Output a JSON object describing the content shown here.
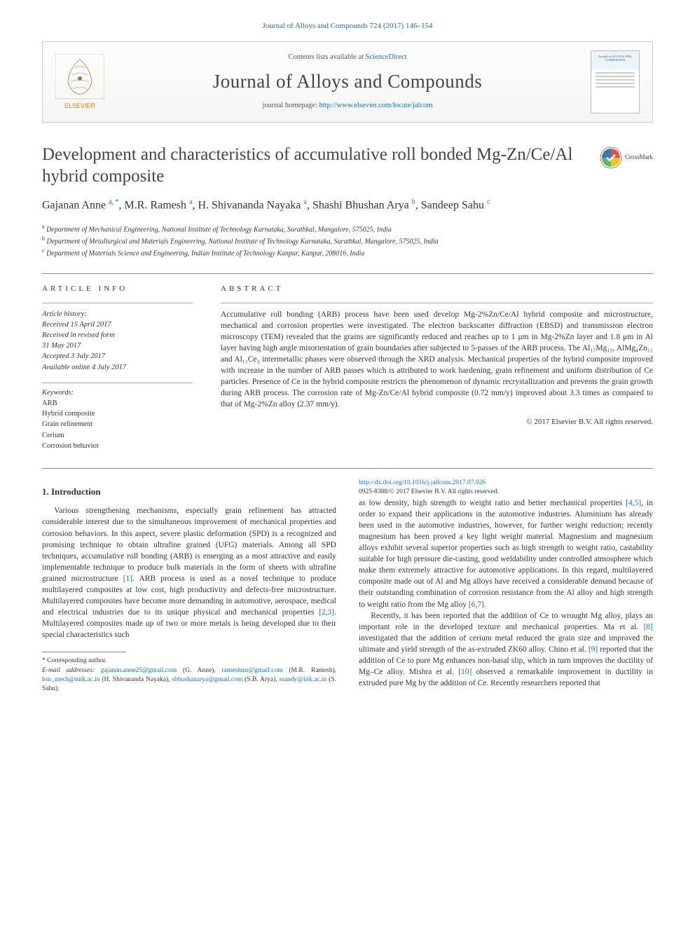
{
  "header": {
    "citation": "Journal of Alloys and Compounds 724 (2017) 146–154",
    "contents": "Contents lists available at ",
    "contents_link": "ScienceDirect",
    "journal_name": "Journal of Alloys and Compounds",
    "homepage_label": "journal homepage: ",
    "homepage_url": "http://www.elsevier.com/locate/jalcom",
    "publisher_name": "ELSEVIER",
    "cover_label": "Journal of ALLOYS AND COMPOUNDS"
  },
  "crossmark": {
    "label": "CrossMark"
  },
  "article": {
    "title": "Development and characteristics of accumulative roll bonded Mg-Zn/Ce/Al hybrid composite",
    "authors_html": "Gajanan Anne <sup class='sup'>a, *</sup>, M.R. Ramesh <sup class='sup'>a</sup>, H. Shivananda Nayaka <sup class='sup'>a</sup>, Shashi Bhushan Arya <sup class='sup'>b</sup>, Sandeep Sahu <sup class='sup'>c</sup>",
    "affiliations": [
      {
        "sup": "a",
        "text": "Department of Mechanical Engineering, National Institute of Technology Karnataka, Surathkal, Mangalore, 575025, India"
      },
      {
        "sup": "b",
        "text": "Department of Metallurgical and Materials Engineering, National Institute of Technology Karnataka, Surathkal, Mangalore, 575025, India"
      },
      {
        "sup": "c",
        "text": "Department of Materials Science and Engineering, Indian Institute of Technology Kanpur, Kanpur, 208016, India"
      }
    ]
  },
  "info": {
    "label": "ARTICLE INFO",
    "history_label": "Article history:",
    "history": [
      "Received 15 April 2017",
      "Received in revised form",
      "31 May 2017",
      "Accepted 3 July 2017",
      "Available online 4 July 2017"
    ],
    "keywords_label": "Keywords:",
    "keywords": [
      "ARB",
      "Hybrid composite",
      "Grain refinement",
      "Cerium",
      "Corrosion behavior"
    ]
  },
  "abstract": {
    "label": "ABSTRACT",
    "text": "Accumulative roll bonding (ARB) process have been used develop Mg-2%Zn/Ce/Al hybrid composite and microstructure, mechanical and corrosion properties were investigated. The electron backscatter diffraction (EBSD) and transmission electron microscopy (TEM) revealed that the grains are significantly reduced and reaches up to 1 μm in Mg-2%Zn layer and 1.8 μm in Al layer having high angle misorientation of grain boundaries after subjected to 5-passes of the ARB process. The Al₁₇Mg₁₂, AlMg₄Zn₁₁ and Al₁₁Ce₃ intermetallic phases were observed through the XRD analysis. Mechanical properties of the hybrid composite improved with increase in the number of ARB passes which is attributed to work hardening, grain refinement and uniform distribution of Ce particles. Presence of Ce in the hybrid composite restricts the phenomenon of dynamic recrystallization and prevents the grain growth during ARB process. The corrosion rate of Mg-Zn/Ce/Al hybrid composite (0.72 mm/y) improved about 3.3 times as compared to that of Mg-2%Zn alloy (2.37 mm/y).",
    "copyright": "© 2017 Elsevier B.V. All rights reserved."
  },
  "section1": {
    "heading": "1. Introduction",
    "para1": "Various strengthening mechanisms, especially grain refinement has attracted considerable interest due to the simultaneous improvement of mechanical properties and corrosion behaviors. In this aspect, severe plastic deformation (SPD) is a recognized and promising technique to obtain ultrafine grained (UFG) materials. Among all SPD techniques, accumulative roll bonding (ARB) is emerging as a most attractive and easily implementable technique to produce bulk materials in the form of sheets with ultrafine grained microstructure <span class='ref'>[1]</span>. ARB process is used as a novel technique to produce multilayered composites at low cost, high productivity and defects-free microstructure. Multilayered composites have become more demanding in automotive, aerospace, medical and electrical industries due to its unique physical and mechanical properties <span class='ref'>[2,3]</span>. Multilayered composites made up of two or more metals is being developed due to their special characteristics such",
    "para2": "as low density, high strength to weight ratio and better mechanical properties <span class='ref'>[4,5]</span>, in order to expand their applications in the automotive industries. Aluminium has already been used in the automotive industries, however, for further weight reduction; recently magnesium has been proved a key light weight material. Magnesium and magnesium alloys exhibit several superior properties such as high strength to weight ratio, castability suitable for high pressure die-casting, good weldability under controlled atmosphere which make them extremely attractive for automotive applications. In this regard, multilayered composite made out of Al and Mg alloys have received a considerable demand because of their outstanding combination of corrosion resistance from the Al alloy and high strength to weight ratio from the Mg alloy <span class='ref'>[6,7]</span>.",
    "para3": "Recently, it has been reported that the addition of Ce to wrought Mg alloy, plays an important role in the developed texture and mechanical properties. Ma et al. <span class='ref'>[8]</span> investigated that the addition of cerium metal reduced the grain size and improved the ultimate and yield strength of the as-extruded ZK60 alloy. Chino et al. <span class='ref'>[9]</span> reported that the addition of Ce to pure Mg enhances non-basal slip, which in turn improves the ductility of Mg–Ce alloy. Mishra et al. <span class='ref'>[10]</span> observed a remarkable improvement in ductility in extruded pure Mg by the addition of Ce. Recently researchers reported that"
  },
  "footnotes": {
    "corr": "* Corresponding author.",
    "emails_label": "E-mail addresses:",
    "emails": [
      {
        "email": "gajanan.anne25@gmail.com",
        "name": "(G. Anne)"
      },
      {
        "email": "rameshmr@gmail.com",
        "name": "(M.R. Ramesh)"
      },
      {
        "email": "hsn_mech@nitk.ac.in",
        "name": "(H. Shivananda Nayaka)"
      },
      {
        "email": "sbhushanarya@gmail.com",
        "name": "(S.B. Arya)"
      },
      {
        "email": "ssandy@iitk.ac.in",
        "name": "(S. Sahu)"
      }
    ]
  },
  "bottom": {
    "doi": "http://dx.doi.org/10.1016/j.jallcom.2017.07.026",
    "issn_line": "0925-8388/© 2017 Elsevier B.V. All rights reserved."
  },
  "style": {
    "link_color": "#1a6fb3",
    "text_color": "#333333",
    "rule_color": "#888888",
    "bg": "#ffffff"
  }
}
